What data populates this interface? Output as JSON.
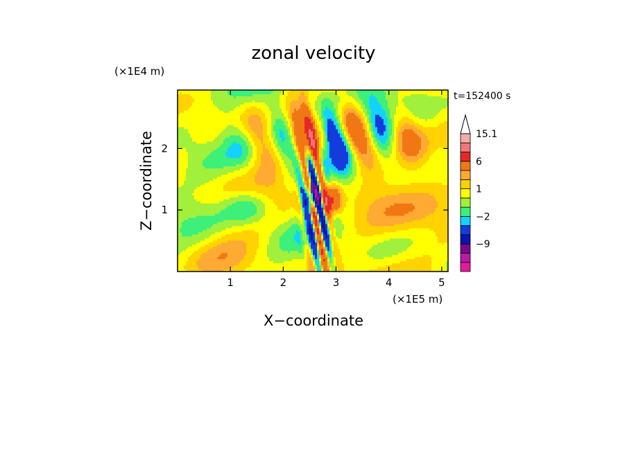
{
  "chart_data": {
    "type": "heatmap",
    "title": "zonal velocity",
    "xlabel": "X−coordinate",
    "ylabel": "Z−coordinate",
    "x_scale_label": "(×1E5 m)",
    "y_scale_label": "(×1E4 m)",
    "time_label": "t=152400 s",
    "xlim": [
      0,
      5.12
    ],
    "ylim": [
      0,
      2.95
    ],
    "x_ticks": [
      1,
      2,
      3,
      4,
      5
    ],
    "x_tick_labels": [
      "1",
      "2",
      "3",
      "4",
      "5"
    ],
    "y_ticks": [
      1,
      2
    ],
    "y_tick_labels": [
      "1",
      "2"
    ],
    "colorbar": {
      "levels": [
        -15,
        -12,
        -9,
        -6,
        -3,
        -2,
        -1,
        0,
        1,
        2,
        3,
        6,
        9,
        12,
        15.1
      ],
      "level_labels": [
        "15.1",
        "6",
        "1",
        "−2",
        "−9"
      ],
      "label_levels": [
        15.1,
        6,
        1,
        -2,
        -9
      ],
      "colors": [
        "#e61a9a",
        "#b81aa8",
        "#7a0a8a",
        "#0a14b4",
        "#143cdc",
        "#14d2ff",
        "#3cf07a",
        "#a0f03c",
        "#ffff00",
        "#ffd200",
        "#ffaa32",
        "#f07814",
        "#e62828",
        "#f07878",
        "#f5aaaa"
      ],
      "extend": "max"
    },
    "notes_visible": "field shown as filled contours; strong negative/positive band near x≈2.6–3.0"
  }
}
